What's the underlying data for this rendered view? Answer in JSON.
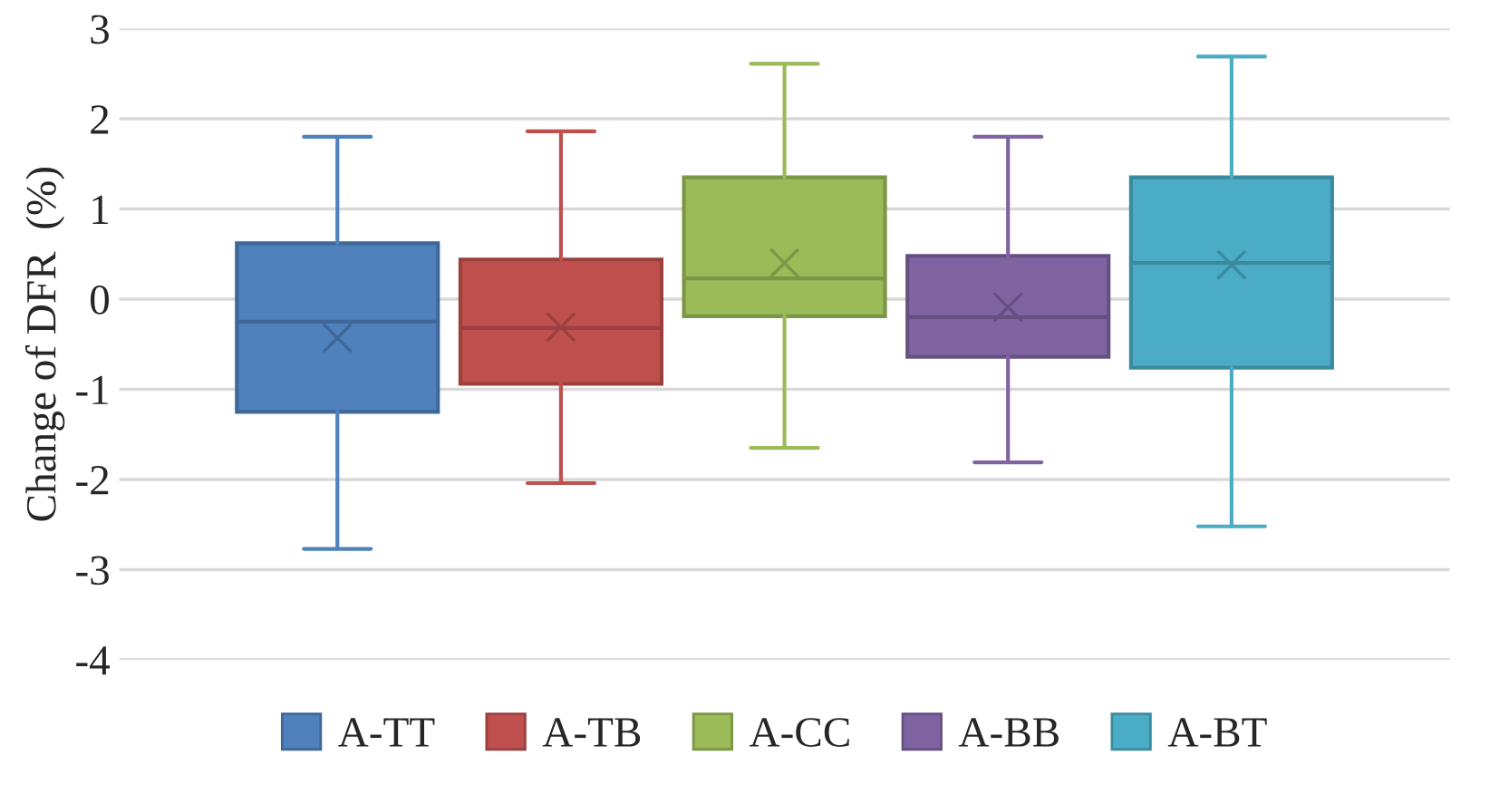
{
  "chart_data": {
    "type": "box",
    "ylabel": "Change of DFR  (%)",
    "categories": [
      null
    ],
    "series": [
      {
        "name": "A-TT",
        "color": "#4f81bd",
        "boxes": [
          {
            "low": -2.77,
            "q1": -1.25,
            "median": -0.25,
            "q3": 0.62,
            "high": 1.8,
            "mean": -0.43
          }
        ]
      },
      {
        "name": "A-TB",
        "color": "#c0504d",
        "boxes": [
          {
            "low": -2.04,
            "q1": -0.94,
            "median": -0.32,
            "q3": 0.44,
            "high": 1.86,
            "mean": -0.31
          }
        ]
      },
      {
        "name": "A-CC",
        "color": "#9bbb59",
        "boxes": [
          {
            "low": -1.65,
            "q1": -0.19,
            "median": 0.23,
            "q3": 1.35,
            "high": 2.61,
            "mean": 0.4
          }
        ]
      },
      {
        "name": "A-BB",
        "color": "#8064a2",
        "boxes": [
          {
            "low": -1.81,
            "q1": -0.64,
            "median": -0.2,
            "q3": 0.48,
            "high": 1.8,
            "mean": -0.09
          }
        ]
      },
      {
        "name": "A-BT",
        "color": "#4bacc6",
        "boxes": [
          {
            "low": -2.52,
            "q1": -0.76,
            "median": 0.4,
            "q3": 1.35,
            "high": 2.69,
            "mean": 0.38
          }
        ]
      }
    ],
    "ylim": [
      -4,
      3
    ],
    "yticks": [
      -4,
      -3,
      -2,
      -1,
      0,
      1,
      2,
      3
    ],
    "grid": "y",
    "legend": "bottom",
    "tick_labels": "y",
    "marker": "cross"
  }
}
